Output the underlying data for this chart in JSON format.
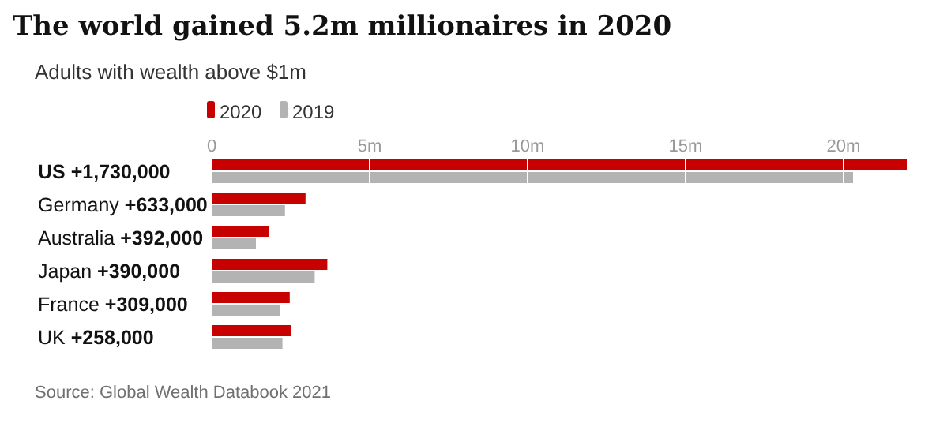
{
  "chart_data": {
    "type": "bar",
    "orientation": "horizontal",
    "title": "The world gained 5.2m millionaires in 2020",
    "subtitle": "Adults with wealth above $1m",
    "categories": [
      "US +1,730,000",
      "Germany +633,000",
      "Australia +392,000",
      "Japan +390,000",
      "France +309,000",
      "UK +258,000"
    ],
    "series": [
      {
        "name": "2020",
        "color": "#c70000",
        "values": [
          22.0,
          2.97,
          1.8,
          3.66,
          2.47,
          2.5
        ]
      },
      {
        "name": "2019",
        "color": "#b3b3b3",
        "values": [
          20.3,
          2.32,
          1.4,
          3.26,
          2.16,
          2.24
        ]
      }
    ],
    "xlim": [
      0,
      22
    ],
    "xticks": [
      0,
      {
        "value": 5,
        "label": "5m"
      },
      {
        "value": 10,
        "label": "10m"
      },
      {
        "value": 15,
        "label": "15m"
      },
      {
        "value": 20,
        "label": "20m"
      }
    ],
    "grid": "x",
    "legend": "top left",
    "annotations": [
      "Source: Global Wealth Databook 2021"
    ]
  }
}
